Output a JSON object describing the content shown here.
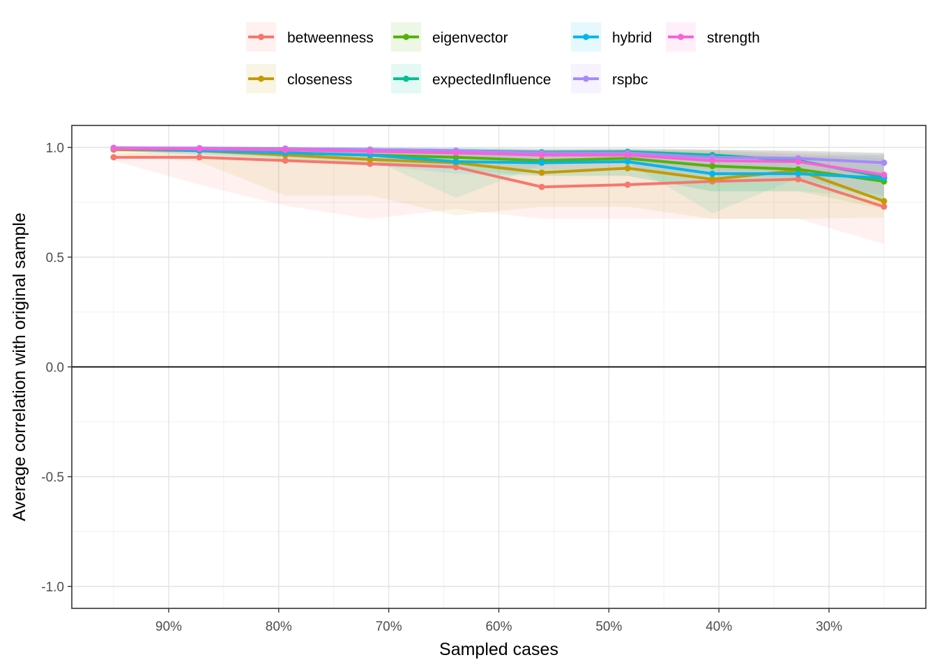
{
  "chart_data": {
    "type": "line",
    "xlabel": "Sampled cases",
    "ylabel": "Average correlation with original sample",
    "ylim": [
      -1.1,
      1.1
    ],
    "yticks": [
      -1.0,
      -0.5,
      0.0,
      0.5,
      1.0
    ],
    "ytick_labels": [
      "-1.0",
      "-0.5",
      "0.0",
      "0.5",
      "1.0"
    ],
    "xlim": [
      0.988,
      0.212
    ],
    "xticks": [
      0.9,
      0.8,
      0.7,
      0.6,
      0.5,
      0.4,
      0.3
    ],
    "xtick_labels": [
      "90%",
      "80%",
      "70%",
      "60%",
      "50%",
      "40%",
      "30%"
    ],
    "grid": true,
    "reference_line_y": 0,
    "legend_position": "top",
    "x": [
      0.95,
      0.872,
      0.794,
      0.717,
      0.639,
      0.561,
      0.483,
      0.406,
      0.328,
      0.25
    ],
    "series": [
      {
        "name": "betweenness",
        "color": "#F8766D",
        "values": [
          0.955,
          0.955,
          0.94,
          0.925,
          0.91,
          0.82,
          0.83,
          0.845,
          0.855,
          0.73
        ],
        "lower": [
          0.94,
          0.83,
          0.735,
          0.675,
          0.72,
          0.675,
          0.675,
          0.675,
          0.675,
          0.56
        ],
        "upper": [
          0.97,
          0.985,
          0.995,
          0.995,
          0.99,
          0.99,
          0.99,
          0.99,
          0.98,
          0.97
        ]
      },
      {
        "name": "closeness",
        "color": "#C49A00",
        "values": [
          0.99,
          0.985,
          0.965,
          0.945,
          0.93,
          0.885,
          0.905,
          0.855,
          0.895,
          0.755
        ],
        "lower": [
          0.97,
          0.935,
          0.78,
          0.78,
          0.69,
          0.73,
          0.73,
          0.675,
          0.675,
          0.68
        ],
        "upper": [
          1.0,
          1.0,
          1.0,
          1.0,
          0.995,
          0.99,
          0.995,
          0.99,
          0.985,
          0.975
        ]
      },
      {
        "name": "eigenvector",
        "color": "#53B400",
        "values": [
          0.995,
          0.99,
          0.975,
          0.965,
          0.955,
          0.94,
          0.95,
          0.915,
          0.9,
          0.845
        ],
        "lower": [
          0.985,
          0.97,
          0.95,
          0.93,
          0.9,
          0.87,
          0.87,
          0.8,
          0.8,
          0.72
        ],
        "upper": [
          1.0,
          1.0,
          1.0,
          0.995,
          0.995,
          0.99,
          0.99,
          0.985,
          0.97,
          0.95
        ]
      },
      {
        "name": "expectedInfluence",
        "color": "#00C094",
        "values": [
          0.998,
          0.995,
          0.993,
          0.99,
          0.985,
          0.978,
          0.98,
          0.965,
          0.94,
          0.865
        ],
        "lower": [
          0.99,
          0.98,
          0.97,
          0.95,
          0.77,
          0.92,
          0.93,
          0.7,
          0.86,
          0.76
        ],
        "upper": [
          1.0,
          1.0,
          1.0,
          1.0,
          0.998,
          0.995,
          0.995,
          0.99,
          0.985,
          0.975
        ]
      },
      {
        "name": "hybrid",
        "color": "#00B6EB",
        "values": [
          0.995,
          0.985,
          0.975,
          0.965,
          0.935,
          0.93,
          0.935,
          0.88,
          0.88,
          0.86
        ],
        "lower": [
          0.985,
          0.965,
          0.945,
          0.92,
          0.88,
          0.87,
          0.87,
          0.8,
          0.8,
          0.77
        ],
        "upper": [
          1.0,
          1.0,
          1.0,
          0.995,
          0.99,
          0.985,
          0.99,
          0.975,
          0.96,
          0.965
        ]
      },
      {
        "name": "rspbc",
        "color": "#A58AFF",
        "values": [
          0.998,
          0.997,
          0.995,
          0.99,
          0.985,
          0.975,
          0.975,
          0.955,
          0.95,
          0.93
        ],
        "lower": [
          0.99,
          0.985,
          0.975,
          0.96,
          0.95,
          0.93,
          0.93,
          0.9,
          0.89,
          0.86
        ],
        "upper": [
          1.0,
          1.0,
          1.0,
          1.0,
          0.998,
          0.995,
          0.995,
          0.99,
          0.985,
          0.975
        ]
      },
      {
        "name": "strength",
        "color": "#FB61D7",
        "values": [
          0.995,
          0.993,
          0.988,
          0.982,
          0.975,
          0.965,
          0.965,
          0.94,
          0.935,
          0.875
        ],
        "lower": [
          0.985,
          0.975,
          0.96,
          0.94,
          0.92,
          0.9,
          0.9,
          0.87,
          0.86,
          0.78
        ],
        "upper": [
          1.0,
          1.0,
          1.0,
          0.998,
          0.995,
          0.99,
          0.99,
          0.985,
          0.975,
          0.965
        ]
      }
    ]
  }
}
